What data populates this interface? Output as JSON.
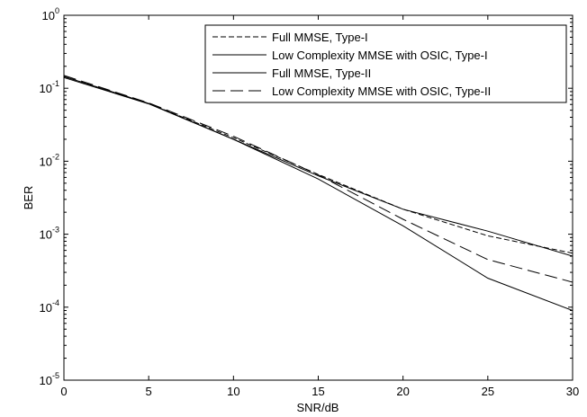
{
  "chart_data": {
    "type": "line",
    "title": "",
    "xlabel": "SNR/dB",
    "ylabel": "BER",
    "xlim": [
      0,
      30
    ],
    "ylim": [
      1e-05,
      1
    ],
    "yscale": "log",
    "x_ticks": [
      "0",
      "5",
      "10",
      "15",
      "20",
      "25",
      "30"
    ],
    "y_tick_exponents": [
      "0",
      "-1",
      "-2",
      "-3",
      "-4",
      "-5"
    ],
    "y_tick_base": "10",
    "grid": false,
    "legend_position": "top-right",
    "x": [
      0,
      5,
      10,
      15,
      20,
      25,
      30
    ],
    "series": [
      {
        "name": "Full MMSE, Type-I",
        "dash": "dashed",
        "color": "#000000",
        "values": [
          0.145,
          0.062,
          0.021,
          0.0066,
          0.0022,
          0.00095,
          0.00055
        ]
      },
      {
        "name": "Low Complexity MMSE with OSIC, Type-I",
        "dash": "solid",
        "color": "#000000",
        "values": [
          0.14,
          0.061,
          0.02,
          0.0063,
          0.0022,
          0.0011,
          0.0005
        ]
      },
      {
        "name": "Full MMSE, Type-II",
        "dash": "solid",
        "color": "#000000",
        "values": [
          0.145,
          0.062,
          0.02,
          0.0057,
          0.0013,
          0.00025,
          9e-05
        ]
      },
      {
        "name": "Low Complexity MMSE with OSIC, Type-II",
        "dash": "longdash",
        "color": "#000000",
        "values": [
          0.15,
          0.063,
          0.022,
          0.0065,
          0.0016,
          0.00045,
          0.00022
        ]
      }
    ]
  }
}
